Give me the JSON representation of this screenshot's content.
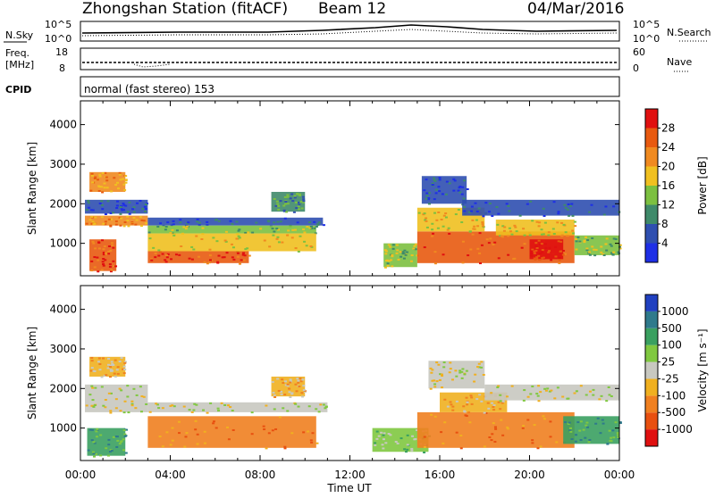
{
  "header": {
    "station": "Zhongshan Station (fitACF)",
    "beam": "Beam 12",
    "date": "04/Mar/2016"
  },
  "sky_panel": {
    "left_label": "N.Sky",
    "left_ticks": [
      "10^5",
      "10^0"
    ],
    "right_label": "N.Search",
    "right_ticks": [
      "10^5",
      "10^0"
    ]
  },
  "freq_panel": {
    "left_label_1": "Freq.",
    "left_label_2": "[MHz]",
    "left_ticks": [
      "18",
      "8"
    ],
    "right_label": "Nave",
    "right_ticks": [
      "60",
      "0"
    ]
  },
  "cpid": {
    "label": "CPID",
    "value": "normal (fast stereo) 153"
  },
  "power_colorbar": {
    "title": "Power [dB]",
    "ticks": [
      "4",
      "8",
      "12",
      "16",
      "20",
      "24",
      "28"
    ],
    "colors": [
      "#1e2fe6",
      "#2f4fb0",
      "#3f8a6a",
      "#7cc040",
      "#f0c020",
      "#f08a20",
      "#e85a10",
      "#e01010"
    ]
  },
  "velocity_colorbar": {
    "title": "Velocity [m s⁻¹]",
    "ticks": [
      "1000",
      "500",
      "100",
      "25",
      "-25",
      "-100",
      "-500",
      "-1000"
    ],
    "colors": [
      "#2040c0",
      "#2f7a8c",
      "#3aa060",
      "#80c840",
      "#c8c8c0",
      "#f0b020",
      "#f08020",
      "#e85010",
      "#e01010"
    ]
  },
  "chart_data": [
    {
      "type": "heatmap",
      "panel": "power",
      "ylabel": "Slant Range [km]",
      "xlabel": "Time UT",
      "x_ticks": [
        "00:00",
        "04:00",
        "08:00",
        "12:00",
        "16:00",
        "20:00",
        "00:00"
      ],
      "y_ticks": [
        "1000",
        "2000",
        "3000",
        "4000"
      ],
      "ylim": [
        180,
        4600
      ],
      "xlim_hours": [
        0,
        24
      ],
      "regions": [
        {
          "t0": 0.2,
          "t1": 3.0,
          "r0": 1450,
          "r1": 1700,
          "level": 5
        },
        {
          "t0": 0.2,
          "t1": 3.0,
          "r0": 1750,
          "r1": 2100,
          "level": 1
        },
        {
          "t0": 0.4,
          "t1": 2.0,
          "r0": 2300,
          "r1": 2800,
          "level": 5
        },
        {
          "t0": 3.0,
          "t1": 10.8,
          "r0": 1450,
          "r1": 1650,
          "level": 1
        },
        {
          "t0": 3.0,
          "t1": 10.5,
          "r0": 1250,
          "r1": 1450,
          "level": 3
        },
        {
          "t0": 3.0,
          "t1": 10.5,
          "r0": 800,
          "r1": 1250,
          "level": 4
        },
        {
          "t0": 3.0,
          "t1": 7.5,
          "r0": 500,
          "r1": 800,
          "level": 6
        },
        {
          "t0": 0.4,
          "t1": 1.6,
          "r0": 300,
          "r1": 1100,
          "level": 6
        },
        {
          "t0": 8.5,
          "t1": 10.0,
          "r0": 1800,
          "r1": 2300,
          "level": 2
        },
        {
          "t0": 13.5,
          "t1": 15.0,
          "r0": 400,
          "r1": 1000,
          "level": 3
        },
        {
          "t0": 15.0,
          "t1": 22.0,
          "r0": 500,
          "r1": 1300,
          "level": 6
        },
        {
          "t0": 15.0,
          "t1": 18.0,
          "r0": 1300,
          "r1": 1900,
          "level": 4
        },
        {
          "t0": 15.2,
          "t1": 17.2,
          "r0": 2000,
          "r1": 2700,
          "level": 1
        },
        {
          "t0": 17.0,
          "t1": 24.0,
          "r0": 1700,
          "r1": 2100,
          "level": 1
        },
        {
          "t0": 18.5,
          "t1": 22.0,
          "r0": 1200,
          "r1": 1600,
          "level": 4
        },
        {
          "t0": 20.0,
          "t1": 21.5,
          "r0": 600,
          "r1": 1100,
          "level": 7
        },
        {
          "t0": 22.0,
          "t1": 24.0,
          "r0": 700,
          "r1": 1200,
          "level": 3
        }
      ]
    },
    {
      "type": "heatmap",
      "panel": "velocity",
      "ylabel": "Slant Range [km]",
      "xlabel": "Time UT",
      "x_ticks": [
        "00:00",
        "04:00",
        "08:00",
        "12:00",
        "16:00",
        "20:00",
        "00:00"
      ],
      "y_ticks": [
        "1000",
        "2000",
        "3000",
        "4000"
      ],
      "ylim": [
        180,
        4600
      ],
      "xlim_hours": [
        0,
        24
      ],
      "regions": [
        {
          "t0": 0.2,
          "t1": 3.0,
          "r0": 1400,
          "r1": 2100,
          "level": 4
        },
        {
          "t0": 0.4,
          "t1": 2.0,
          "r0": 2300,
          "r1": 2800,
          "level": 5
        },
        {
          "t0": 3.0,
          "t1": 11.0,
          "r0": 1400,
          "r1": 1650,
          "level": 4
        },
        {
          "t0": 3.0,
          "t1": 10.5,
          "r0": 500,
          "r1": 1300,
          "level": 6
        },
        {
          "t0": 0.3,
          "t1": 2.0,
          "r0": 300,
          "r1": 1000,
          "level": 2
        },
        {
          "t0": 8.5,
          "t1": 10.0,
          "r0": 1800,
          "r1": 2300,
          "level": 5
        },
        {
          "t0": 13.0,
          "t1": 15.5,
          "r0": 400,
          "r1": 1000,
          "level": 3
        },
        {
          "t0": 15.0,
          "t1": 22.0,
          "r0": 500,
          "r1": 1400,
          "level": 6
        },
        {
          "t0": 16.0,
          "t1": 19.0,
          "r0": 1400,
          "r1": 1900,
          "level": 5
        },
        {
          "t0": 15.5,
          "t1": 18.0,
          "r0": 2000,
          "r1": 2700,
          "level": 4
        },
        {
          "t0": 18.0,
          "t1": 24.0,
          "r0": 1700,
          "r1": 2100,
          "level": 4
        },
        {
          "t0": 21.5,
          "t1": 24.0,
          "r0": 600,
          "r1": 1300,
          "level": 2
        }
      ]
    }
  ]
}
